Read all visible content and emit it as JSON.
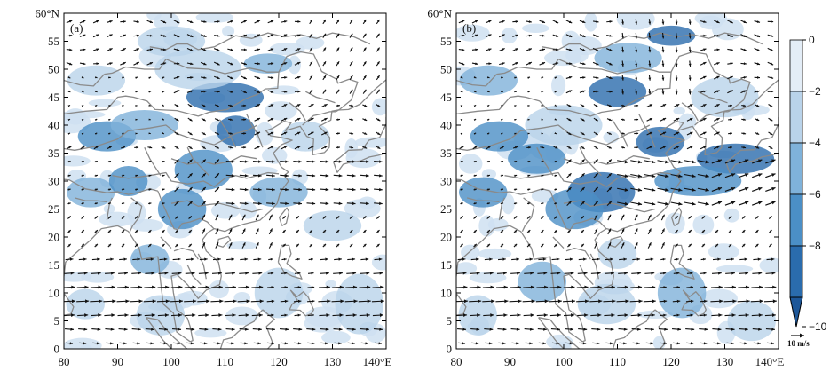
{
  "panels": [
    {
      "label": "(a)",
      "xticks": [
        "80",
        "90",
        "100",
        "110",
        "120",
        "130",
        "140°E"
      ],
      "yticks": [
        "0",
        "5",
        "10",
        "15",
        "20",
        "25",
        "30",
        "35",
        "40",
        "45",
        "50",
        "55",
        "60°N"
      ]
    },
    {
      "label": "(b)",
      "xticks": [
        "80",
        "90",
        "100",
        "110",
        "120",
        "130",
        "140°E"
      ],
      "yticks": [
        "0",
        "5",
        "10",
        "15",
        "20",
        "25",
        "30",
        "35",
        "40",
        "45",
        "50",
        "55",
        "60°N"
      ]
    }
  ],
  "map_extent": {
    "lon": [
      80,
      140
    ],
    "lat": [
      0,
      60
    ]
  },
  "colorbar": {
    "ticks": [
      "0",
      "−2",
      "−4",
      "−6",
      "−8",
      "−10"
    ],
    "values": [
      0,
      -2,
      -4,
      -6,
      -8,
      -10
    ],
    "colors": [
      "#e3edf7",
      "#b9d3ea",
      "#7fb2da",
      "#4b8fc6",
      "#2a6cad"
    ]
  },
  "reference_vector": {
    "label": "10 m/s"
  },
  "colors": {
    "land_outline": "#8a8a8a",
    "arrow": "#111111"
  }
}
